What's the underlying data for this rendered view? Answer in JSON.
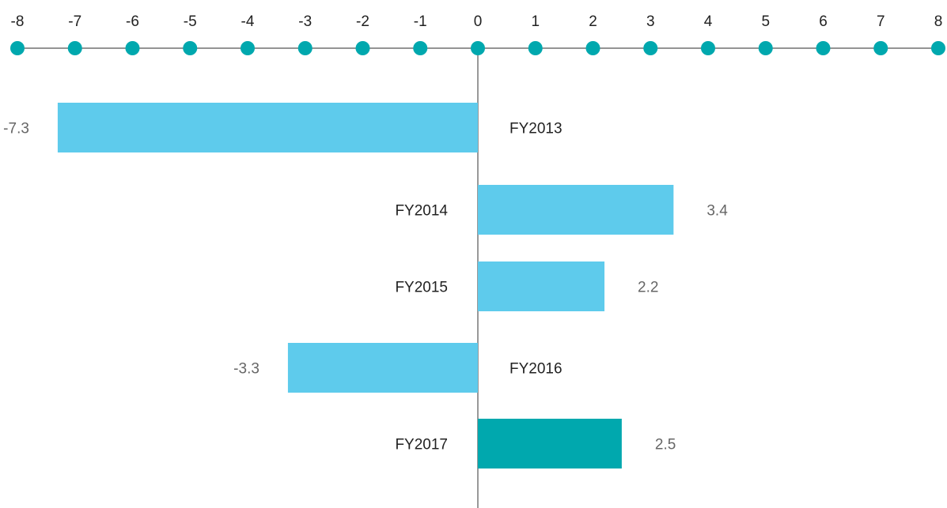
{
  "chart_data": {
    "type": "bar",
    "orientation": "horizontal",
    "title": "",
    "xlabel": "",
    "ylabel": "",
    "xlim": [
      -8,
      8
    ],
    "x_ticks": [
      -8,
      -7,
      -6,
      -5,
      -4,
      -3,
      -2,
      -1,
      0,
      1,
      2,
      3,
      4,
      5,
      6,
      7,
      8
    ],
    "x_tick_labels": [
      "-8",
      "-7",
      "-6",
      "-5",
      "-4",
      "-3",
      "-2",
      "-1",
      "0",
      "1",
      "2",
      "3",
      "4",
      "5",
      "6",
      "7",
      "8"
    ],
    "axis_position": "top",
    "grid": false,
    "legend": "none",
    "categories": [
      "FY2013",
      "FY2014",
      "FY2015",
      "FY2016",
      "FY2017"
    ],
    "values": [
      -7.3,
      3.4,
      2.2,
      -3.3,
      2.5
    ],
    "value_labels": [
      "-7.3",
      "3.4",
      "2.2",
      "-3.3",
      "2.5"
    ],
    "bar_colors": [
      "#5ECBEC",
      "#5ECBEC",
      "#5ECBEC",
      "#5ECBEC",
      "#00A8AE"
    ],
    "tick_marker_color": "#00A8AE",
    "axis_color": "#555555"
  }
}
